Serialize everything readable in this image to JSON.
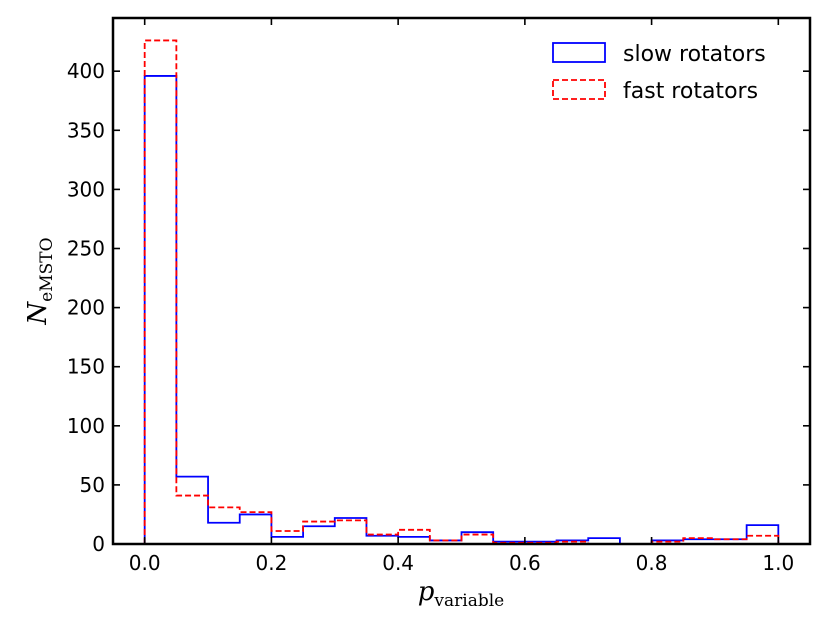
{
  "chart_data": {
    "type": "histogram",
    "title": "",
    "xlabel": {
      "main": "p",
      "sub": "variable"
    },
    "ylabel": {
      "main": "N",
      "sub": "eMSTO"
    },
    "xlim": [
      -0.05,
      1.05
    ],
    "ylim": [
      0,
      445
    ],
    "xticks": [
      0.0,
      0.2,
      0.4,
      0.6,
      0.8,
      1.0
    ],
    "xtick_labels": [
      "0.0",
      "0.2",
      "0.4",
      "0.6",
      "0.8",
      "1.0"
    ],
    "yticks": [
      0,
      50,
      100,
      150,
      200,
      250,
      300,
      350,
      400
    ],
    "ytick_labels": [
      "0",
      "50",
      "100",
      "150",
      "200",
      "250",
      "300",
      "350",
      "400"
    ],
    "bin_edges": [
      0.0,
      0.05,
      0.1,
      0.15,
      0.2,
      0.25,
      0.3,
      0.35,
      0.4,
      0.45,
      0.5,
      0.55,
      0.6,
      0.65,
      0.7,
      0.75,
      0.8,
      0.85,
      0.9,
      0.95,
      1.0
    ],
    "legend_position": "upper right",
    "series": [
      {
        "name": "slow rotators",
        "color": "#0000ff",
        "linestyle": "solid",
        "counts": [
          396,
          57,
          18,
          25,
          6,
          15,
          22,
          7,
          6,
          3,
          10,
          2,
          2,
          3,
          5,
          0,
          3,
          4,
          4,
          16
        ]
      },
      {
        "name": "fast rotators",
        "color": "#ff0000",
        "linestyle": "dashed",
        "counts": [
          426,
          41,
          31,
          27,
          11,
          19,
          20,
          8,
          12,
          3,
          8,
          1,
          1,
          2,
          0,
          0,
          2,
          5,
          4,
          7
        ]
      }
    ]
  }
}
